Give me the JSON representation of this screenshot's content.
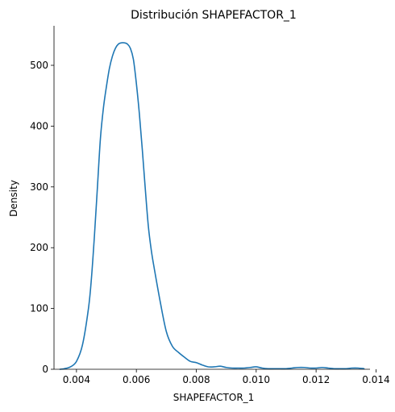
{
  "chart_data": {
    "type": "line",
    "title": "Distribución SHAPEFACTOR_1",
    "xlabel": "SHAPEFACTOR_1",
    "ylabel": "Density",
    "xlim": [
      0.00325,
      0.0138
    ],
    "ylim": [
      0,
      565
    ],
    "x_ticks": [
      0.004,
      0.006,
      0.008,
      0.01,
      0.012,
      0.014
    ],
    "x_tick_labels": [
      "0.004",
      "0.006",
      "0.008",
      "0.010",
      "0.012",
      "0.014"
    ],
    "y_ticks": [
      0,
      100,
      200,
      300,
      400,
      500
    ],
    "y_tick_labels": [
      "0",
      "100",
      "200",
      "300",
      "400",
      "500"
    ],
    "grid": false,
    "spines": [
      "left",
      "bottom"
    ],
    "series": [
      {
        "color": "#1f77b4",
        "x": [
          0.00345,
          0.0036,
          0.0038,
          0.004,
          0.0042,
          0.0044,
          0.0045,
          0.0046,
          0.0047,
          0.0048,
          0.0049,
          0.005,
          0.0051,
          0.0052,
          0.0053,
          0.0054,
          0.0055,
          0.0056,
          0.0057,
          0.0058,
          0.0059,
          0.006,
          0.0061,
          0.0062,
          0.0063,
          0.0064,
          0.0065,
          0.0066,
          0.0068,
          0.007,
          0.0072,
          0.0074,
          0.0076,
          0.0078,
          0.008,
          0.0082,
          0.0084,
          0.0086,
          0.0088,
          0.009,
          0.0092,
          0.0094,
          0.0096,
          0.0098,
          0.01,
          0.0102,
          0.0104,
          0.0106,
          0.0108,
          0.011,
          0.0112,
          0.0114,
          0.0116,
          0.0118,
          0.012,
          0.0122,
          0.0124,
          0.0126,
          0.0128,
          0.013,
          0.0132,
          0.0134,
          0.0136
        ],
        "y": [
          0,
          1,
          4,
          13,
          40,
          100,
          150,
          220,
          300,
          380,
          430,
          465,
          495,
          515,
          528,
          535,
          537,
          537,
          535,
          528,
          510,
          470,
          420,
          360,
          295,
          235,
          195,
          165,
          110,
          62,
          38,
          28,
          20,
          13,
          11,
          7,
          4,
          4,
          5,
          3,
          2,
          2,
          2,
          3,
          4,
          2,
          1,
          1,
          1,
          1,
          2,
          3,
          3,
          2,
          2,
          3,
          2,
          1,
          1,
          1,
          2,
          2,
          1
        ]
      }
    ]
  }
}
